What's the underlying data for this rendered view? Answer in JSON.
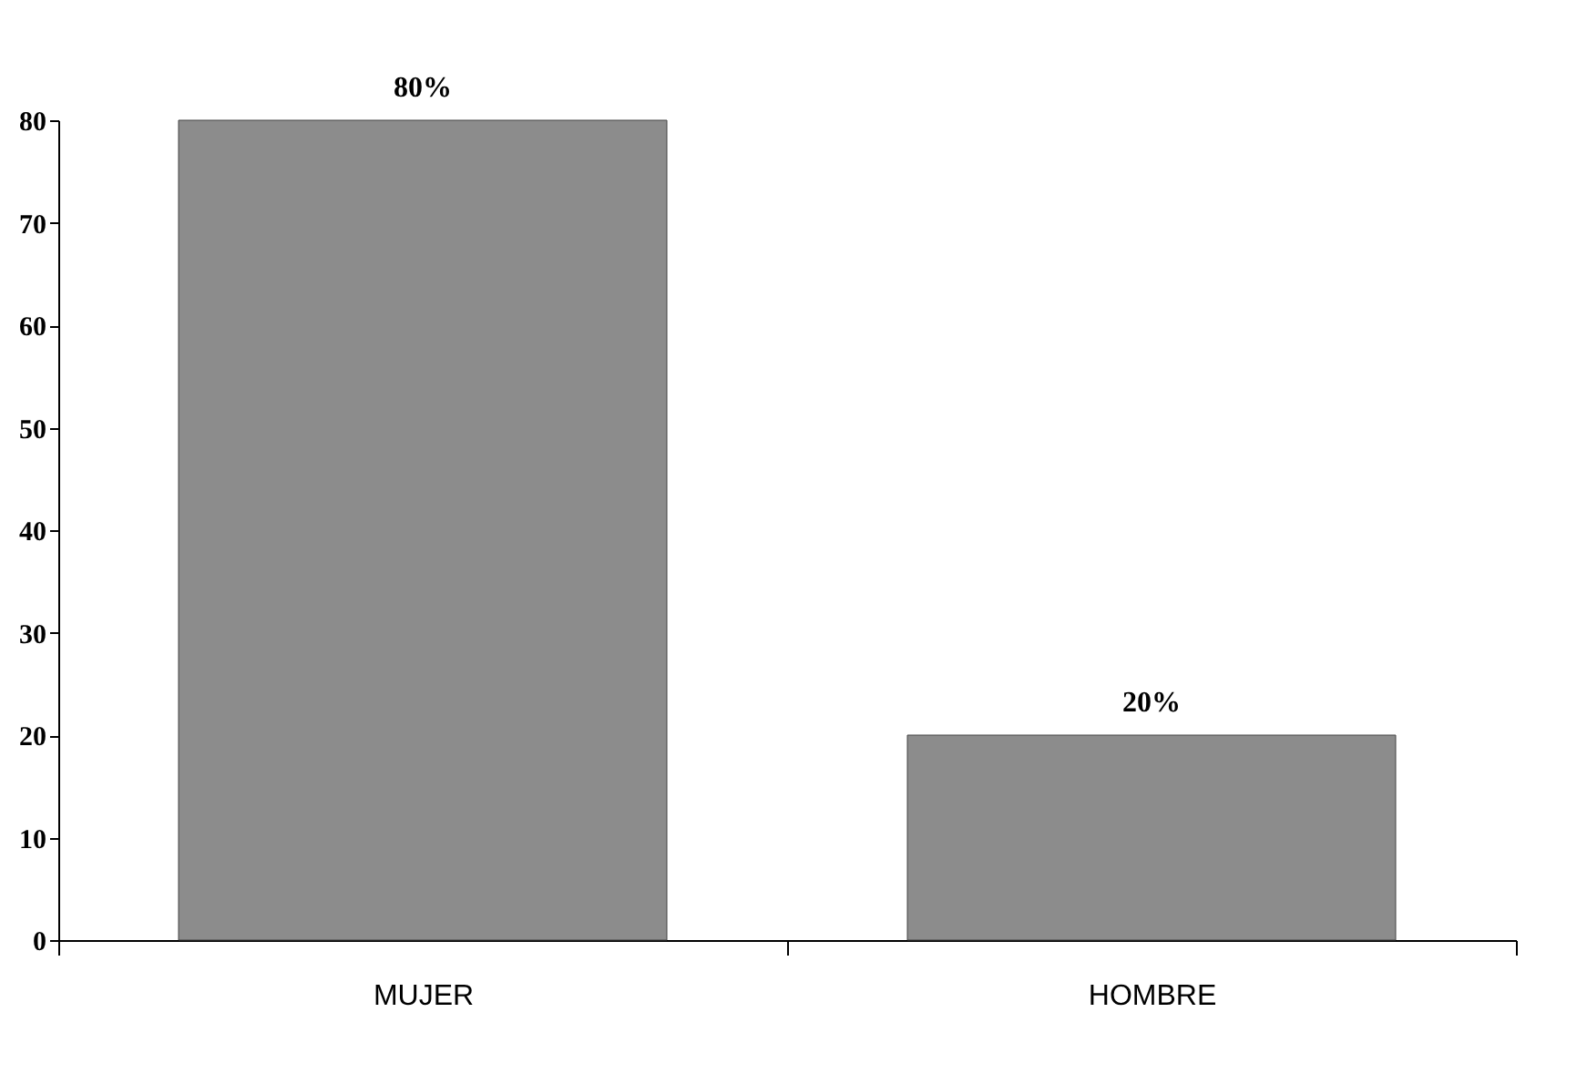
{
  "chart_data": {
    "type": "bar",
    "categories": [
      "MUJER",
      "HOMBRE"
    ],
    "values": [
      80,
      20
    ],
    "value_labels": [
      "80%",
      "20%"
    ],
    "color": "#8c8c8c",
    "ylim": [
      0,
      80
    ],
    "yticks": [
      0,
      10,
      20,
      30,
      40,
      50,
      60,
      70,
      80
    ],
    "grid": false
  }
}
